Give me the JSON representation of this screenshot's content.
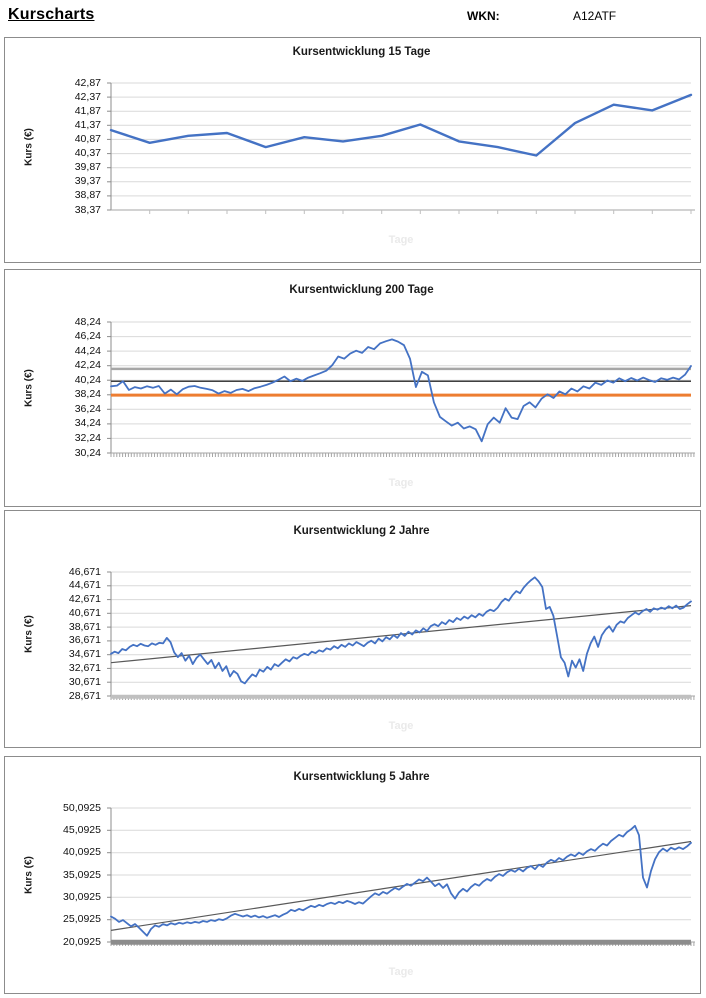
{
  "header": {
    "title": "Kurscharts",
    "wkn_label": "WKN:",
    "wkn_value": "A12ATF"
  },
  "chart_data": [
    {
      "type": "line",
      "title": "Kursentwicklung 15 Tage",
      "ylabel": "Kurs (€)",
      "xlabel": "Tage",
      "y_axis": {
        "min": 38.37,
        "max": 42.87,
        "tick_labels": [
          "42,87",
          "42,37",
          "41,87",
          "41,37",
          "40,87",
          "40,37",
          "39,87",
          "39,37",
          "38,87",
          "38,37"
        ]
      },
      "x_axis": {
        "tick_style": "sparse",
        "tick_count": 15
      },
      "ref_lines": [],
      "trend_line": null,
      "series": [
        {
          "name": "kurs",
          "color": "#4472C4",
          "stroke_width": 2.4,
          "values": [
            41.2,
            40.75,
            41.0,
            41.1,
            40.6,
            40.95,
            40.8,
            41.0,
            41.4,
            40.8,
            40.6,
            40.3,
            41.45,
            42.1,
            41.9,
            42.45
          ]
        }
      ]
    },
    {
      "type": "line",
      "title": "Kursentwicklung 200 Tage",
      "ylabel": "Kurs (€)",
      "xlabel": "Tage",
      "y_axis": {
        "min": 30.24,
        "max": 48.24,
        "tick_labels": [
          "48,24",
          "46,24",
          "44,24",
          "42,24",
          "40,24",
          "38,24",
          "36,24",
          "34,24",
          "32,24",
          "30,24"
        ]
      },
      "x_axis": {
        "tick_style": "dense",
        "tick_count": 200
      },
      "ref_lines": [
        {
          "name": "upper-gray-line",
          "value": 41.8,
          "color": "#A6A6A6",
          "stroke_width": 2.5
        },
        {
          "name": "mid-dark-line",
          "value": 40.1,
          "color": "#404040",
          "stroke_width": 1.5
        },
        {
          "name": "orange-line",
          "value": 38.2,
          "color": "#ED7D31",
          "stroke_width": 3
        }
      ],
      "trend_line": null,
      "series": [
        {
          "name": "kurs",
          "color": "#4472C4",
          "stroke_width": 1.8,
          "values": [
            39.4,
            39.5,
            40.1,
            38.9,
            39.3,
            39.1,
            39.4,
            39.2,
            39.45,
            38.4,
            38.95,
            38.3,
            39.0,
            39.35,
            39.45,
            39.2,
            39.05,
            38.85,
            38.4,
            38.75,
            38.5,
            38.9,
            39.05,
            38.75,
            39.15,
            39.35,
            39.6,
            39.9,
            40.3,
            40.75,
            40.1,
            40.45,
            40.15,
            40.6,
            40.9,
            41.2,
            41.55,
            42.3,
            43.5,
            43.2,
            43.9,
            44.3,
            44.0,
            44.8,
            44.5,
            45.3,
            45.6,
            45.85,
            45.55,
            45.05,
            43.2,
            39.3,
            41.4,
            40.9,
            37.2,
            35.2,
            34.6,
            34.0,
            34.4,
            33.6,
            33.9,
            33.5,
            31.85,
            34.2,
            35.1,
            34.4,
            36.4,
            35.1,
            34.9,
            36.7,
            37.2,
            36.5,
            37.7,
            38.3,
            37.8,
            38.7,
            38.3,
            39.1,
            38.7,
            39.4,
            39.1,
            39.9,
            39.6,
            40.2,
            39.9,
            40.5,
            40.1,
            40.55,
            40.2,
            40.6,
            40.25,
            40.0,
            40.5,
            40.3,
            40.6,
            40.35,
            41.0,
            42.2
          ]
        }
      ]
    },
    {
      "type": "line",
      "title": "Kursentwicklung 2 Jahre",
      "ylabel": "Kurs (€)",
      "xlabel": "Tage",
      "y_axis": {
        "min": 28.671,
        "max": 46.671,
        "tick_labels": [
          "46,671",
          "44,671",
          "42,671",
          "40,671",
          "38,671",
          "36,671",
          "34,671",
          "32,671",
          "30,671",
          "28,671"
        ]
      },
      "x_axis": {
        "tick_style": "dense",
        "tick_count": 500
      },
      "ref_lines": [
        {
          "name": "bottom-gray-band",
          "value": 28.55,
          "color": "#C0C0C0",
          "stroke_width": 4
        }
      ],
      "trend_line": {
        "start": 33.5,
        "end": 41.8,
        "color": "#595959",
        "stroke_width": 1.2
      },
      "series": [
        {
          "name": "kurs",
          "color": "#4472C4",
          "stroke_width": 1.8,
          "values": [
            34.8,
            35.1,
            34.9,
            35.5,
            35.3,
            35.8,
            36.1,
            35.9,
            36.25,
            36.0,
            35.9,
            36.3,
            36.1,
            36.4,
            36.3,
            37.1,
            36.5,
            35.0,
            34.3,
            34.9,
            33.8,
            34.5,
            33.3,
            34.2,
            34.7,
            34.0,
            33.3,
            33.9,
            32.7,
            33.5,
            32.3,
            33.0,
            31.5,
            32.3,
            31.9,
            30.8,
            30.5,
            31.2,
            31.8,
            31.5,
            32.5,
            32.2,
            32.9,
            32.5,
            33.3,
            33.0,
            33.5,
            34.0,
            33.7,
            34.3,
            34.1,
            34.5,
            34.8,
            34.6,
            35.1,
            34.9,
            35.3,
            35.1,
            35.6,
            35.4,
            35.9,
            35.6,
            36.1,
            35.8,
            36.3,
            36.0,
            36.5,
            36.2,
            35.9,
            36.4,
            36.7,
            36.3,
            37.0,
            36.6,
            37.2,
            36.9,
            37.5,
            37.1,
            37.8,
            37.4,
            38.0,
            37.6,
            38.2,
            37.9,
            38.5,
            38.1,
            38.8,
            39.1,
            38.8,
            39.4,
            39.1,
            39.7,
            39.4,
            40.0,
            39.7,
            40.2,
            39.9,
            40.4,
            40.1,
            40.6,
            40.3,
            40.9,
            41.2,
            41.0,
            41.5,
            42.3,
            42.8,
            42.5,
            43.3,
            43.9,
            43.6,
            44.4,
            45.0,
            45.5,
            45.9,
            45.3,
            44.5,
            41.3,
            41.6,
            40.3,
            37.3,
            34.3,
            33.5,
            31.5,
            33.8,
            32.8,
            34.0,
            32.3,
            34.8,
            36.3,
            37.3,
            35.8,
            37.5,
            38.3,
            38.8,
            38.0,
            39.0,
            39.5,
            39.3,
            40.0,
            40.4,
            40.8,
            40.5,
            41.0,
            41.3,
            40.9,
            41.4,
            41.2,
            41.5,
            41.3,
            41.7,
            41.4,
            41.8,
            41.3,
            41.5,
            42.0,
            42.4
          ]
        }
      ]
    },
    {
      "type": "line",
      "title": "Kursentwicklung 5 Jahre",
      "ylabel": "Kurs (€)",
      "xlabel": "Tage",
      "y_axis": {
        "min": 20.0925,
        "max": 50.0925,
        "tick_labels": [
          "50,0925",
          "45,0925",
          "40,0925",
          "35,0925",
          "30,0925",
          "25,0925",
          "20,0925"
        ]
      },
      "x_axis": {
        "tick_style": "dense",
        "tick_count": 1250
      },
      "ref_lines": [
        {
          "name": "bottom-gray-band",
          "value": 20.05,
          "color": "#8C8C8C",
          "stroke_width": 5
        }
      ],
      "trend_line": {
        "start": 22.7,
        "end": 42.6,
        "color": "#595959",
        "stroke_width": 1.2
      },
      "series": [
        {
          "name": "kurs",
          "color": "#4472C4",
          "stroke_width": 1.8,
          "values": [
            25.8,
            25.3,
            24.6,
            25.0,
            24.3,
            23.6,
            24.1,
            23.3,
            22.4,
            21.5,
            23.0,
            23.8,
            23.5,
            24.1,
            23.8,
            24.3,
            24.0,
            24.4,
            24.2,
            24.5,
            24.3,
            24.6,
            24.4,
            24.8,
            24.6,
            25.0,
            24.8,
            25.2,
            25.0,
            25.4,
            26.0,
            26.4,
            26.1,
            25.8,
            26.1,
            25.7,
            26.0,
            25.6,
            25.9,
            25.5,
            25.8,
            26.1,
            25.7,
            26.2,
            26.6,
            27.3,
            27.0,
            27.5,
            27.2,
            27.7,
            28.2,
            27.9,
            28.4,
            28.1,
            28.6,
            28.9,
            28.6,
            29.1,
            28.8,
            29.3,
            29.0,
            28.6,
            29.0,
            28.7,
            29.5,
            30.3,
            31.0,
            30.6,
            31.3,
            30.9,
            31.6,
            32.2,
            31.8,
            32.5,
            33.1,
            32.7,
            33.4,
            34.1,
            33.7,
            34.5,
            33.6,
            32.6,
            33.2,
            32.2,
            33.0,
            31.0,
            29.8,
            31.2,
            32.0,
            31.4,
            32.4,
            33.1,
            32.7,
            33.6,
            34.2,
            33.8,
            34.7,
            35.3,
            34.9,
            35.7,
            36.2,
            35.8,
            36.5,
            35.9,
            36.7,
            37.1,
            36.4,
            37.4,
            36.9,
            37.9,
            38.5,
            38.1,
            38.9,
            38.4,
            39.2,
            39.7,
            39.3,
            40.1,
            39.6,
            40.4,
            40.9,
            40.5,
            41.4,
            42.1,
            41.7,
            42.7,
            43.4,
            44.1,
            43.7,
            44.7,
            45.3,
            46.1,
            44.0,
            34.5,
            32.3,
            36.0,
            38.6,
            40.2,
            41.0,
            40.4,
            41.2,
            40.8,
            41.3,
            40.9,
            41.5,
            42.3
          ]
        }
      ]
    }
  ]
}
